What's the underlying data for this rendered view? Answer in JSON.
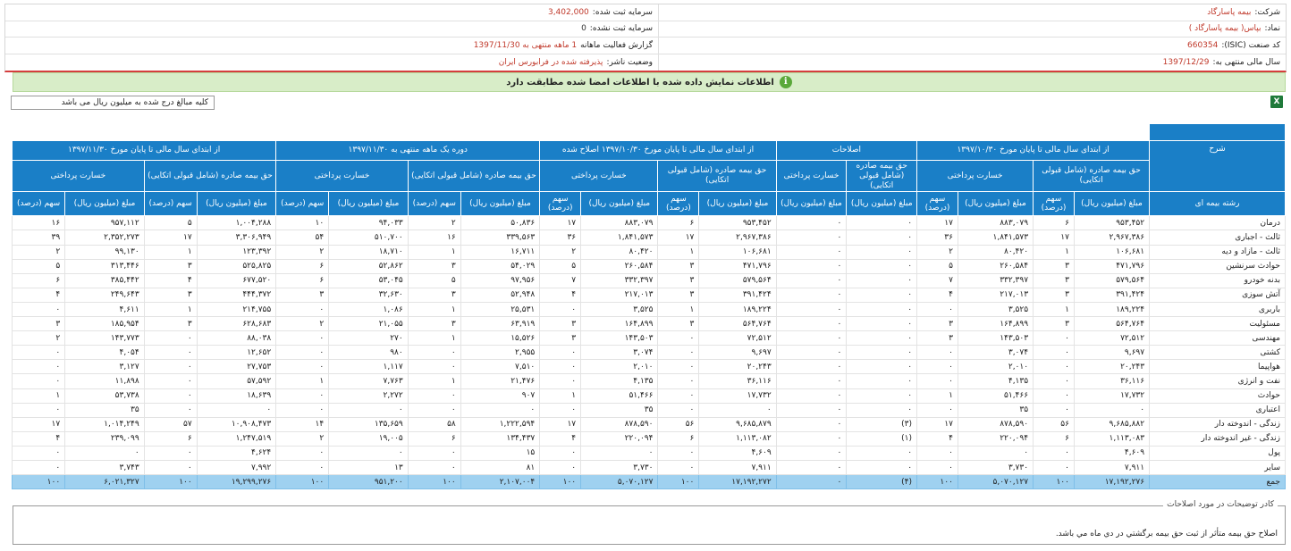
{
  "header": {
    "company_label": "شرکت:",
    "company_value": "بیمه پاسارگاد",
    "symbol_label": "نماد:",
    "symbol_value": "بپاس( بیمه پاسارگاد )",
    "isic_label": "کد صنعت (ISIC):",
    "isic_value": "660354",
    "fiscal_label": "سال مالی منتهی به:",
    "fiscal_value": "1397/12/29",
    "reg_capital_label": "سرمایه ثبت شده:",
    "reg_capital_value": "3,402,000",
    "unreg_capital_label": "سرمایه ثبت نشده:",
    "unreg_capital_value": "0",
    "report_label": "گزارش فعالیت ماهانه",
    "report_value": "1 ماهه منتهی به 1397/11/30",
    "status_label": "وضعیت ناشر:",
    "status_value": "پذیرفته شده در فرابورس ایران"
  },
  "notice": "اطلاعات نمایش داده شده با اطلاعات امضا شده مطابقت دارد",
  "unit_note": "کلیه مبالغ درج شده به میلیون ریال می باشد",
  "table": {
    "desc_header": "شرح",
    "line_header": "رشته بیمه ای",
    "groups": [
      "از ابتدای سال مالی تا پایان مورخ ۱۳۹۷/۱۰/۳۰",
      "اصلاحات",
      "از ابتدای سال مالی تا پایان مورخ ۱۳۹۷/۱۰/۳۰ اصلاح شده",
      "دوره یک ماهه منتهی به ۱۳۹۷/۱۱/۳۰",
      "از ابتدای سال مالی تا پایان مورخ ۱۳۹۷/۱۱/۳۰"
    ],
    "premium_header": "حق بیمه صادره (شامل قبولی اتکایی)",
    "loss_header": "خسارت پرداختی",
    "adj_premium_header": "حق بیمه صادره (شامل قبولی اتکایی)",
    "adj_loss_header": "خسارت پرداختی",
    "amount_header": "مبلغ (میلیون ریال)",
    "share_header": "سهم (درصد)",
    "rows": [
      {
        "name": "درمان",
        "v": [
          "۹۵۳,۴۵۲",
          "۶",
          "۸۸۳,۰۷۹",
          "۱۷",
          "۰",
          "۰",
          "۹۵۳,۴۵۲",
          "۶",
          "۸۸۳,۰۷۹",
          "۱۷",
          "۵۰,۸۳۶",
          "۲",
          "۹۴,۰۳۳",
          "۱۰",
          "۱,۰۰۴,۲۸۸",
          "۵",
          "۹۵۷,۱۱۲",
          "۱۶"
        ]
      },
      {
        "name": "ثالث - اجباری",
        "v": [
          "۲,۹۶۷,۳۸۶",
          "۱۷",
          "۱,۸۴۱,۵۷۳",
          "۳۶",
          "۰",
          "۰",
          "۲,۹۶۷,۳۸۶",
          "۱۷",
          "۱,۸۴۱,۵۷۳",
          "۳۶",
          "۳۳۹,۵۶۳",
          "۱۶",
          "۵۱۰,۷۰۰",
          "۵۴",
          "۳,۳۰۶,۹۴۹",
          "۱۷",
          "۲,۳۵۲,۲۷۳",
          "۳۹"
        ]
      },
      {
        "name": "ثالث - مازاد و دیه",
        "v": [
          "۱۰۶,۶۸۱",
          "۱",
          "۸۰,۴۲۰",
          "۲",
          "۰",
          "۰",
          "۱۰۶,۶۸۱",
          "۱",
          "۸۰,۴۲۰",
          "۲",
          "۱۶,۷۱۱",
          "۱",
          "۱۸,۷۱۰",
          "۲",
          "۱۲۳,۳۹۲",
          "۱",
          "۹۹,۱۳۰",
          "۲"
        ]
      },
      {
        "name": "حوادث سرنشین",
        "v": [
          "۴۷۱,۷۹۶",
          "۳",
          "۲۶۰,۵۸۴",
          "۵",
          "۰",
          "۰",
          "۴۷۱,۷۹۶",
          "۳",
          "۲۶۰,۵۸۴",
          "۵",
          "۵۴,۰۲۹",
          "۳",
          "۵۲,۸۶۲",
          "۶",
          "۵۲۵,۸۲۵",
          "۳",
          "۳۱۳,۴۴۶",
          "۵"
        ]
      },
      {
        "name": "بدنه خودرو",
        "v": [
          "۵۷۹,۵۶۴",
          "۳",
          "۳۳۲,۳۹۷",
          "۷",
          "۰",
          "۰",
          "۵۷۹,۵۶۴",
          "۳",
          "۳۳۲,۳۹۷",
          "۷",
          "۹۷,۹۵۶",
          "۵",
          "۵۳,۰۴۵",
          "۶",
          "۶۷۷,۵۲۰",
          "۴",
          "۳۸۵,۴۴۲",
          "۶"
        ]
      },
      {
        "name": "آتش سوزی",
        "v": [
          "۳۹۱,۴۲۴",
          "۳",
          "۲۱۷,۰۱۳",
          "۴",
          "۰",
          "۰",
          "۳۹۱,۴۲۴",
          "۳",
          "۲۱۷,۰۱۳",
          "۴",
          "۵۲,۹۴۸",
          "۳",
          "۳۲,۶۳۰",
          "۳",
          "۴۴۴,۳۷۲",
          "۳",
          "۲۴۹,۶۴۳",
          "۴"
        ]
      },
      {
        "name": "باربری",
        "v": [
          "۱۸۹,۲۲۴",
          "۱",
          "۳,۵۲۵",
          "۰",
          "۰",
          "۰",
          "۱۸۹,۲۲۴",
          "۱",
          "۳,۵۲۵",
          "۰",
          "۲۵,۵۳۱",
          "۱",
          "۱,۰۸۶",
          "۰",
          "۲۱۴,۷۵۵",
          "۱",
          "۴,۶۱۱",
          "۰"
        ]
      },
      {
        "name": "مسئولیت",
        "v": [
          "۵۶۴,۷۶۴",
          "۳",
          "۱۶۴,۸۹۹",
          "۳",
          "۰",
          "۰",
          "۵۶۴,۷۶۴",
          "۳",
          "۱۶۴,۸۹۹",
          "۳",
          "۶۳,۹۱۹",
          "۳",
          "۲۱,۰۵۵",
          "۲",
          "۶۲۸,۶۸۳",
          "۳",
          "۱۸۵,۹۵۴",
          "۳"
        ]
      },
      {
        "name": "مهندسی",
        "v": [
          "۷۲,۵۱۲",
          "۰",
          "۱۴۳,۵۰۳",
          "۳",
          "۰",
          "۰",
          "۷۲,۵۱۲",
          "۰",
          "۱۴۳,۵۰۳",
          "۳",
          "۱۵,۵۲۶",
          "۱",
          "۲۷۰",
          "۰",
          "۸۸,۰۳۸",
          "۰",
          "۱۴۳,۷۷۳",
          "۲"
        ]
      },
      {
        "name": "کشتی",
        "v": [
          "۹,۶۹۷",
          "۰",
          "۳,۰۷۴",
          "۰",
          "۰",
          "۰",
          "۹,۶۹۷",
          "۰",
          "۳,۰۷۴",
          "۰",
          "۲,۹۵۵",
          "۰",
          "۹۸۰",
          "۰",
          "۱۲,۶۵۲",
          "۰",
          "۴,۰۵۴",
          "۰"
        ]
      },
      {
        "name": "هواپیما",
        "v": [
          "۲۰,۲۴۳",
          "۰",
          "۲,۰۱۰",
          "۰",
          "۰",
          "۰",
          "۲۰,۲۴۳",
          "۰",
          "۲,۰۱۰",
          "۰",
          "۷,۵۱۰",
          "۰",
          "۱,۱۱۷",
          "۰",
          "۲۷,۷۵۳",
          "۰",
          "۳,۱۲۷",
          "۰"
        ]
      },
      {
        "name": "نفت و انرژی",
        "v": [
          "۳۶,۱۱۶",
          "۰",
          "۴,۱۳۵",
          "۰",
          "۰",
          "۰",
          "۳۶,۱۱۶",
          "۰",
          "۴,۱۳۵",
          "۰",
          "۲۱,۴۷۶",
          "۱",
          "۷,۷۶۳",
          "۱",
          "۵۷,۵۹۲",
          "۰",
          "۱۱,۸۹۸",
          "۰"
        ]
      },
      {
        "name": "حوادث",
        "v": [
          "۱۷,۷۳۲",
          "۰",
          "۵۱,۴۶۶",
          "۱",
          "۰",
          "۰",
          "۱۷,۷۳۲",
          "۰",
          "۵۱,۴۶۶",
          "۱",
          "۹۰۷",
          "۰",
          "۲,۲۷۲",
          "۰",
          "۱۸,۶۳۹",
          "۰",
          "۵۳,۷۳۸",
          "۱"
        ]
      },
      {
        "name": "اعتباری",
        "v": [
          "۰",
          "۰",
          "۳۵",
          "۰",
          "۰",
          "۰",
          "۰",
          "۰",
          "۳۵",
          "۰",
          "۰",
          "۰",
          "۰",
          "۰",
          "۰",
          "۰",
          "۳۵",
          "۰"
        ]
      },
      {
        "name": "زندگی - اندوخته دار",
        "v": [
          "۹,۶۸۵,۸۸۲",
          "۵۶",
          "۸۷۸,۵۹۰",
          "۱۷",
          "(۳)",
          "۰",
          "۹,۶۸۵,۸۷۹",
          "۵۶",
          "۸۷۸,۵۹۰",
          "۱۷",
          "۱,۲۲۲,۵۹۴",
          "۵۸",
          "۱۳۵,۶۵۹",
          "۱۴",
          "۱۰,۹۰۸,۴۷۳",
          "۵۷",
          "۱,۰۱۴,۲۴۹",
          "۱۷"
        ]
      },
      {
        "name": "زندگی - غیر اندوخته دار",
        "v": [
          "۱,۱۱۳,۰۸۳",
          "۶",
          "۲۲۰,۰۹۴",
          "۴",
          "(۱)",
          "۰",
          "۱,۱۱۳,۰۸۲",
          "۶",
          "۲۲۰,۰۹۴",
          "۴",
          "۱۳۴,۴۳۷",
          "۶",
          "۱۹,۰۰۵",
          "۲",
          "۱,۲۴۷,۵۱۹",
          "۶",
          "۲۳۹,۰۹۹",
          "۴"
        ]
      },
      {
        "name": "پول",
        "v": [
          "۴,۶۰۹",
          "۰",
          "۰",
          "۰",
          "۰",
          "۰",
          "۴,۶۰۹",
          "۰",
          "۰",
          "۰",
          "۱۵",
          "۰",
          "۰",
          "۰",
          "۴,۶۲۴",
          "۰",
          "۰",
          "۰"
        ]
      },
      {
        "name": "سایر",
        "v": [
          "۷,۹۱۱",
          "۰",
          "۳,۷۳۰",
          "۰",
          "۰",
          "۰",
          "۷,۹۱۱",
          "۰",
          "۳,۷۳۰",
          "۰",
          "۸۱",
          "۰",
          "۱۳",
          "۰",
          "۷,۹۹۲",
          "۰",
          "۳,۷۴۳",
          "۰"
        ]
      }
    ],
    "total": {
      "name": "جمع",
      "v": [
        "۱۷,۱۹۲,۲۷۶",
        "۱۰۰",
        "۵,۰۷۰,۱۲۷",
        "۱۰۰",
        "(۴)",
        "۰",
        "۱۷,۱۹۲,۲۷۲",
        "۱۰۰",
        "۵,۰۷۰,۱۲۷",
        "۱۰۰",
        "۲,۱۰۷,۰۰۴",
        "۱۰۰",
        "۹۵۱,۲۰۰",
        "۱۰۰",
        "۱۹,۲۹۹,۲۷۶",
        "۱۰۰",
        "۶,۰۲۱,۳۲۷",
        "۱۰۰"
      ]
    }
  },
  "comments": {
    "legend": "کادر توضیحات در مورد اصلاحات",
    "text": "اصلاح حق بیمه متأثر از ثبت حق بیمه برگشتي در دي ماه مي باشد."
  }
}
